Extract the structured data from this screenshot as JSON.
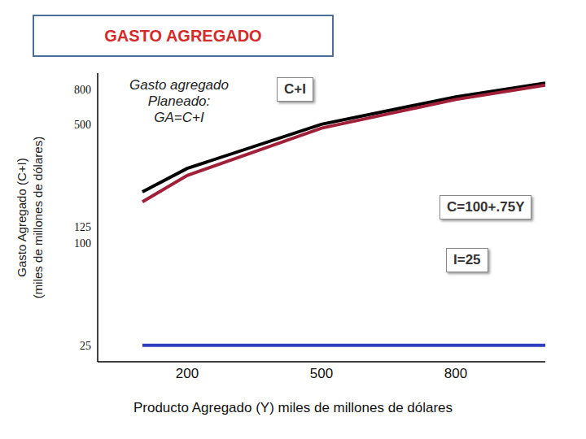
{
  "chart_data": {
    "type": "line",
    "title": "GASTO AGREGADO",
    "x_label": "Producto Agregado (Y) miles de millones de dólares",
    "y_label": [
      "Gasto Agregado (C+I)",
      "(miles de millones de dólares)"
    ],
    "annotation": [
      "Gasto agregado",
      "Planeado:",
      "GA=C+I"
    ],
    "x": [
      100,
      200,
      500,
      800,
      1000
    ],
    "series": [
      {
        "name": "C+I",
        "color": "#000000",
        "values": [
          200,
          275,
          500,
          725,
          875
        ]
      },
      {
        "name": "C=100+.75Y",
        "color": "#a0203a",
        "values": [
          175,
          250,
          475,
          700,
          850
        ]
      },
      {
        "name": "I=25",
        "color": "#2e3fbf",
        "values": [
          25,
          25,
          25,
          25,
          25
        ]
      }
    ],
    "xlim": [
      0,
      1000
    ],
    "xticks": [
      200,
      500,
      800
    ],
    "ylim": [
      20,
      1000
    ],
    "yticks": [
      25,
      100,
      125,
      500,
      800
    ],
    "log": "y",
    "grid": false
  }
}
